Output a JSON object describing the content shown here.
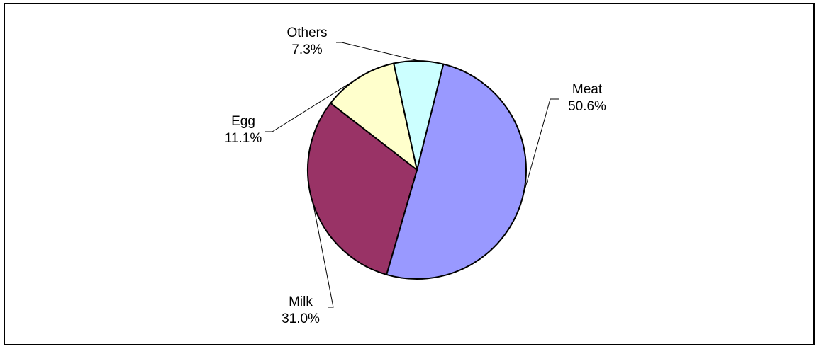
{
  "chart_data": {
    "type": "pie",
    "title": "",
    "slices": [
      {
        "label": "Meat",
        "value": 50.6,
        "value_label": "50.6%",
        "color": "#9999ff"
      },
      {
        "label": "Milk",
        "value": 31.0,
        "value_label": "31.0%",
        "color": "#993366"
      },
      {
        "label": "Egg",
        "value": 11.1,
        "value_label": "11.1%",
        "color": "#ffffcc"
      },
      {
        "label": "Others",
        "value": 7.3,
        "value_label": "7.3%",
        "color": "#ccffff"
      }
    ],
    "legend": "none",
    "label_style": "outside with leader lines"
  }
}
